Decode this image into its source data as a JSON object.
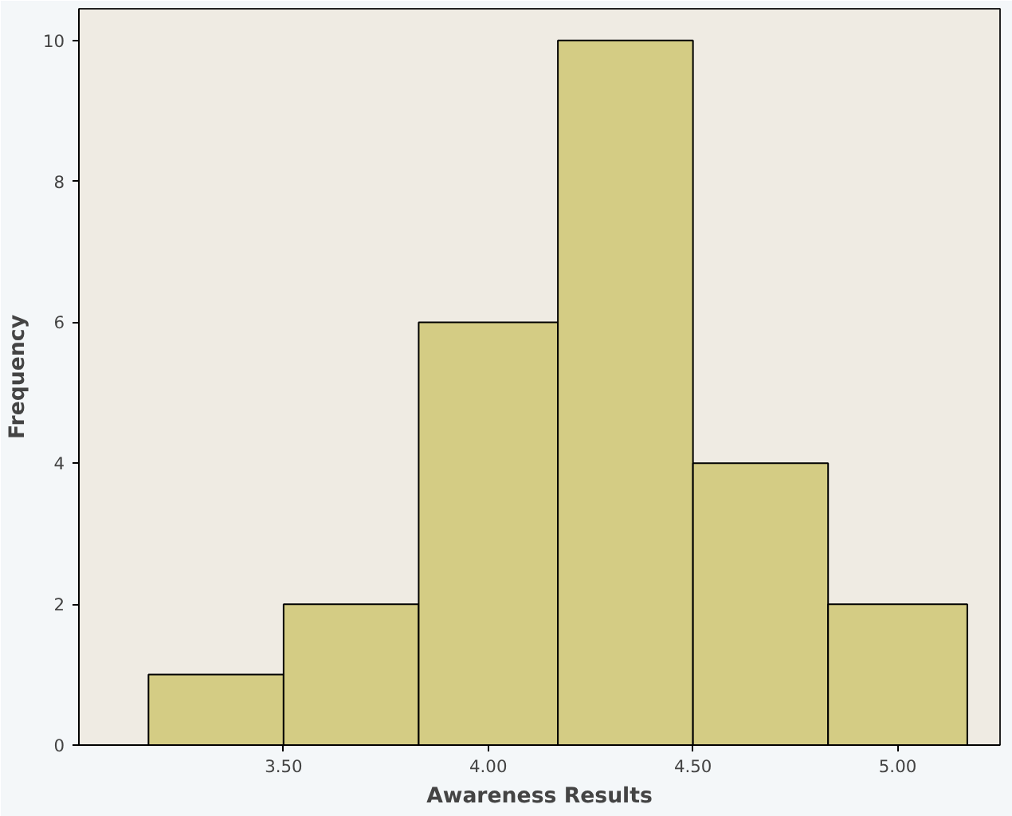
{
  "chart_data": {
    "type": "histogram",
    "xlabel": "Awareness Results",
    "ylabel": "Frequency",
    "bins": [
      3.17,
      3.5,
      3.83,
      4.17,
      4.5,
      4.83,
      5.17
    ],
    "values": [
      1,
      2,
      6,
      10,
      4,
      2
    ],
    "color": "#d4cc84",
    "xlim": [
      3.0,
      5.25
    ],
    "ylim": [
      0,
      10.45
    ],
    "xticks": [
      {
        "value": 3.5,
        "label": "3.50"
      },
      {
        "value": 4.0,
        "label": "4.00"
      },
      {
        "value": 4.5,
        "label": "4.50"
      },
      {
        "value": 5.0,
        "label": "5.00"
      }
    ],
    "yticks": [
      0,
      2,
      4,
      6,
      8,
      10
    ],
    "grid": false
  }
}
